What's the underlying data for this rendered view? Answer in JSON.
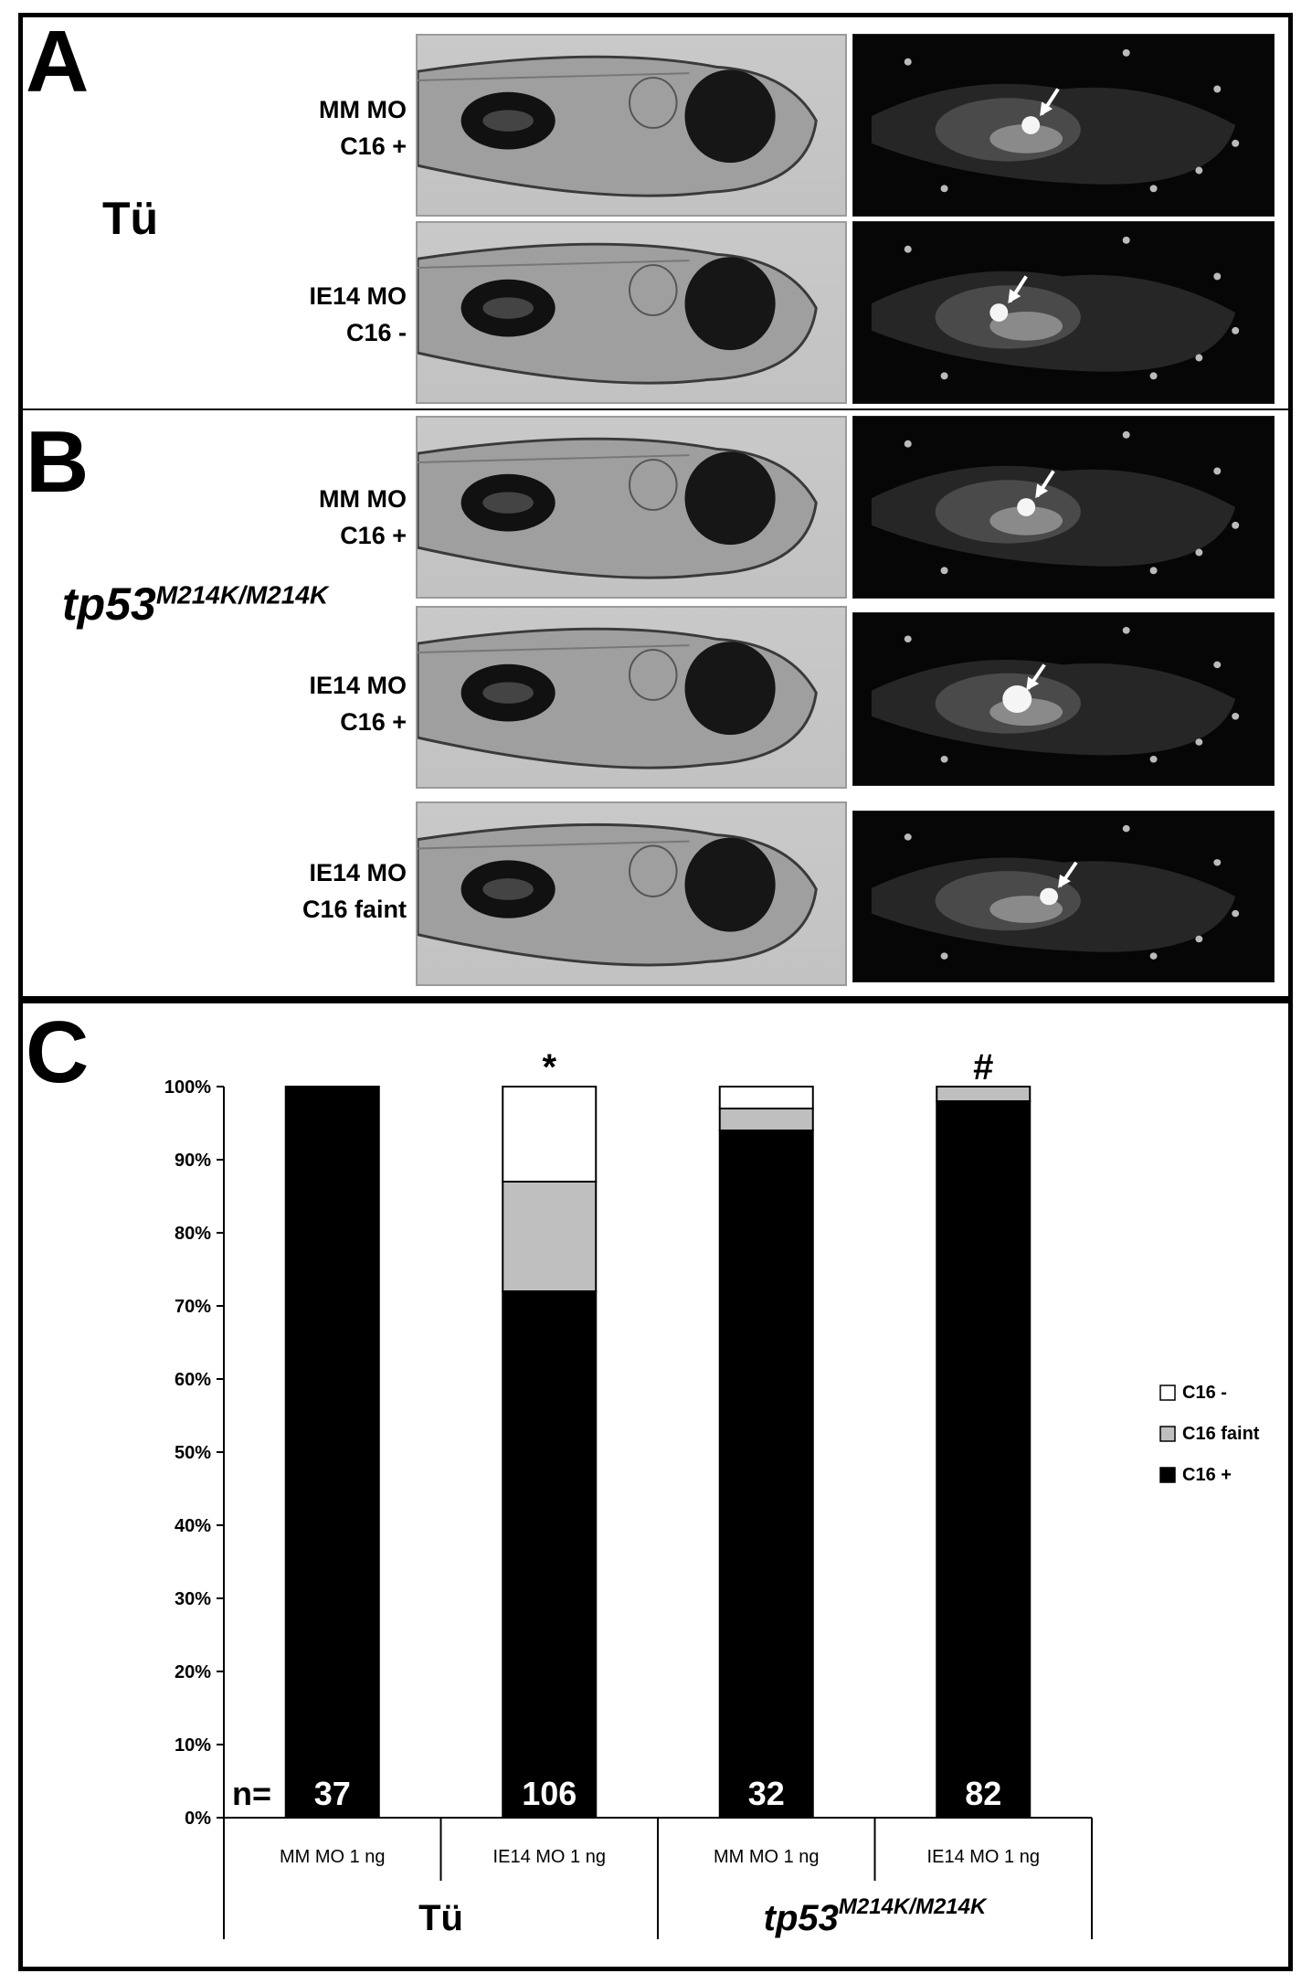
{
  "panel_a": {
    "letter": "A",
    "strain": "Tü",
    "rows": [
      {
        "line1": "MM MO",
        "line2": "C16 +"
      },
      {
        "line1": "IE14 MO",
        "line2": "C16 -"
      }
    ]
  },
  "panel_b": {
    "letter": "B",
    "strain_name": "tp53",
    "strain_allele": "M214K/M214K",
    "rows": [
      {
        "line1": "MM MO",
        "line2": "C16 +"
      },
      {
        "line1": "IE14 MO",
        "line2": "C16 +"
      },
      {
        "line1": "IE14 MO",
        "line2": "C16 faint"
      }
    ]
  },
  "panel_c": {
    "letter": "C",
    "n_prefix": "n=",
    "group_labels": [
      {
        "name": "Tü",
        "allele": ""
      },
      {
        "name": "tp53",
        "allele": "M214K/M214K"
      }
    ]
  },
  "chart_data": {
    "type": "bar",
    "stacked": true,
    "categories": [
      "MM MO 1 ng",
      "IE14 MO 1 ng",
      "MM MO 1 ng",
      "IE14 MO 1 ng"
    ],
    "series": [
      {
        "name": "C16 +",
        "color": "#000000",
        "values": [
          100,
          72,
          94,
          98
        ]
      },
      {
        "name": "C16 faint",
        "color": "#bfbfbf",
        "values": [
          0,
          15,
          3,
          2
        ]
      },
      {
        "name": "C16 -",
        "color": "#ffffff",
        "values": [
          0,
          13,
          3,
          0
        ]
      }
    ],
    "n_values": [
      "37",
      "106",
      "32",
      "82"
    ],
    "annotations": [
      "",
      "*",
      "",
      "#"
    ],
    "ylim": [
      0,
      100
    ],
    "yticks": [
      "0%",
      "10%",
      "20%",
      "30%",
      "40%",
      "50%",
      "60%",
      "70%",
      "80%",
      "90%",
      "100%"
    ],
    "legend_order": [
      "C16 -",
      "C16 faint",
      "C16 +"
    ],
    "legend_position": "right",
    "grid": false
  }
}
